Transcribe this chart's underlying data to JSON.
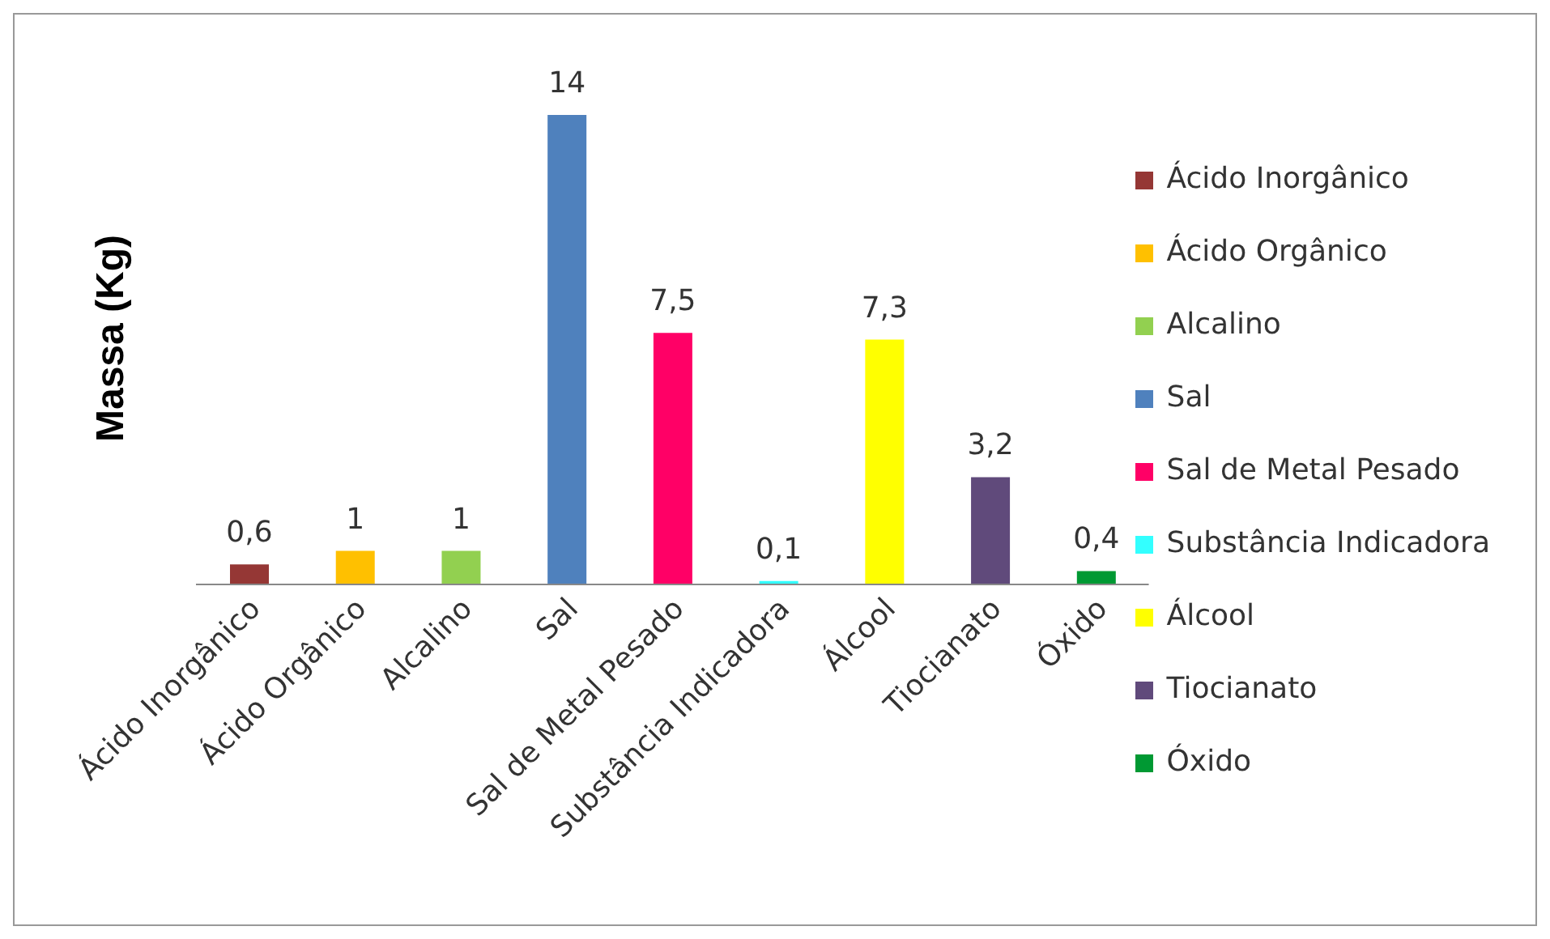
{
  "chart_data": {
    "type": "bar",
    "ylabel": "Massa (Kg)",
    "stacked": true,
    "categories": [
      "Ácido Inorgânico",
      "Ácido Orgânico",
      "Alcalino",
      "Sal",
      "Sal de Metal Pesado",
      "Substância Indicadora",
      "Álcool",
      "Tiocianato",
      "Óxido"
    ],
    "series": [
      {
        "name": "Ácido Inorgânico",
        "color": "#953735",
        "values": [
          0.6,
          null,
          null,
          null,
          null,
          null,
          null,
          null,
          null
        ],
        "value_labels": [
          "0,6",
          null,
          null,
          null,
          null,
          null,
          null,
          null,
          null
        ]
      },
      {
        "name": "Ácido Orgânico",
        "color": "#ffc000",
        "values": [
          null,
          1,
          null,
          null,
          null,
          null,
          null,
          null,
          null
        ],
        "value_labels": [
          null,
          "1",
          null,
          null,
          null,
          null,
          null,
          null,
          null
        ]
      },
      {
        "name": "Alcalino",
        "color": "#92d050",
        "values": [
          null,
          null,
          1,
          null,
          null,
          null,
          null,
          null,
          null
        ],
        "value_labels": [
          null,
          null,
          "1",
          null,
          null,
          null,
          null,
          null,
          null
        ]
      },
      {
        "name": "Sal",
        "color": "#4f81bd",
        "values": [
          null,
          null,
          null,
          14,
          null,
          null,
          null,
          null,
          null
        ],
        "value_labels": [
          null,
          null,
          null,
          "14",
          null,
          null,
          null,
          null,
          null
        ]
      },
      {
        "name": "Sal de Metal Pesado",
        "color": "#ff0066",
        "values": [
          null,
          null,
          null,
          null,
          7.5,
          null,
          null,
          null,
          null
        ],
        "value_labels": [
          null,
          null,
          null,
          null,
          "7,5",
          null,
          null,
          null,
          null
        ]
      },
      {
        "name": "Substância Indicadora",
        "color": "#33ffff",
        "values": [
          null,
          null,
          null,
          null,
          null,
          0.1,
          null,
          null,
          null
        ],
        "value_labels": [
          null,
          null,
          null,
          null,
          null,
          "0,1",
          null,
          null,
          null
        ]
      },
      {
        "name": "Álcool",
        "color": "#ffff00",
        "values": [
          null,
          null,
          null,
          null,
          null,
          null,
          7.3,
          null,
          null
        ],
        "value_labels": [
          null,
          null,
          null,
          null,
          null,
          null,
          "7,3",
          null,
          null
        ]
      },
      {
        "name": "Tiocianato",
        "color": "#604a7b",
        "values": [
          null,
          null,
          null,
          null,
          null,
          null,
          null,
          3.2,
          null
        ],
        "value_labels": [
          null,
          null,
          null,
          null,
          null,
          null,
          null,
          "3,2",
          null
        ]
      },
      {
        "name": "Óxido",
        "color": "#009933",
        "values": [
          null,
          null,
          null,
          null,
          null,
          null,
          null,
          null,
          0.4
        ],
        "value_labels": [
          null,
          null,
          null,
          null,
          null,
          null,
          null,
          null,
          "0,4"
        ]
      }
    ],
    "legend": "right"
  }
}
